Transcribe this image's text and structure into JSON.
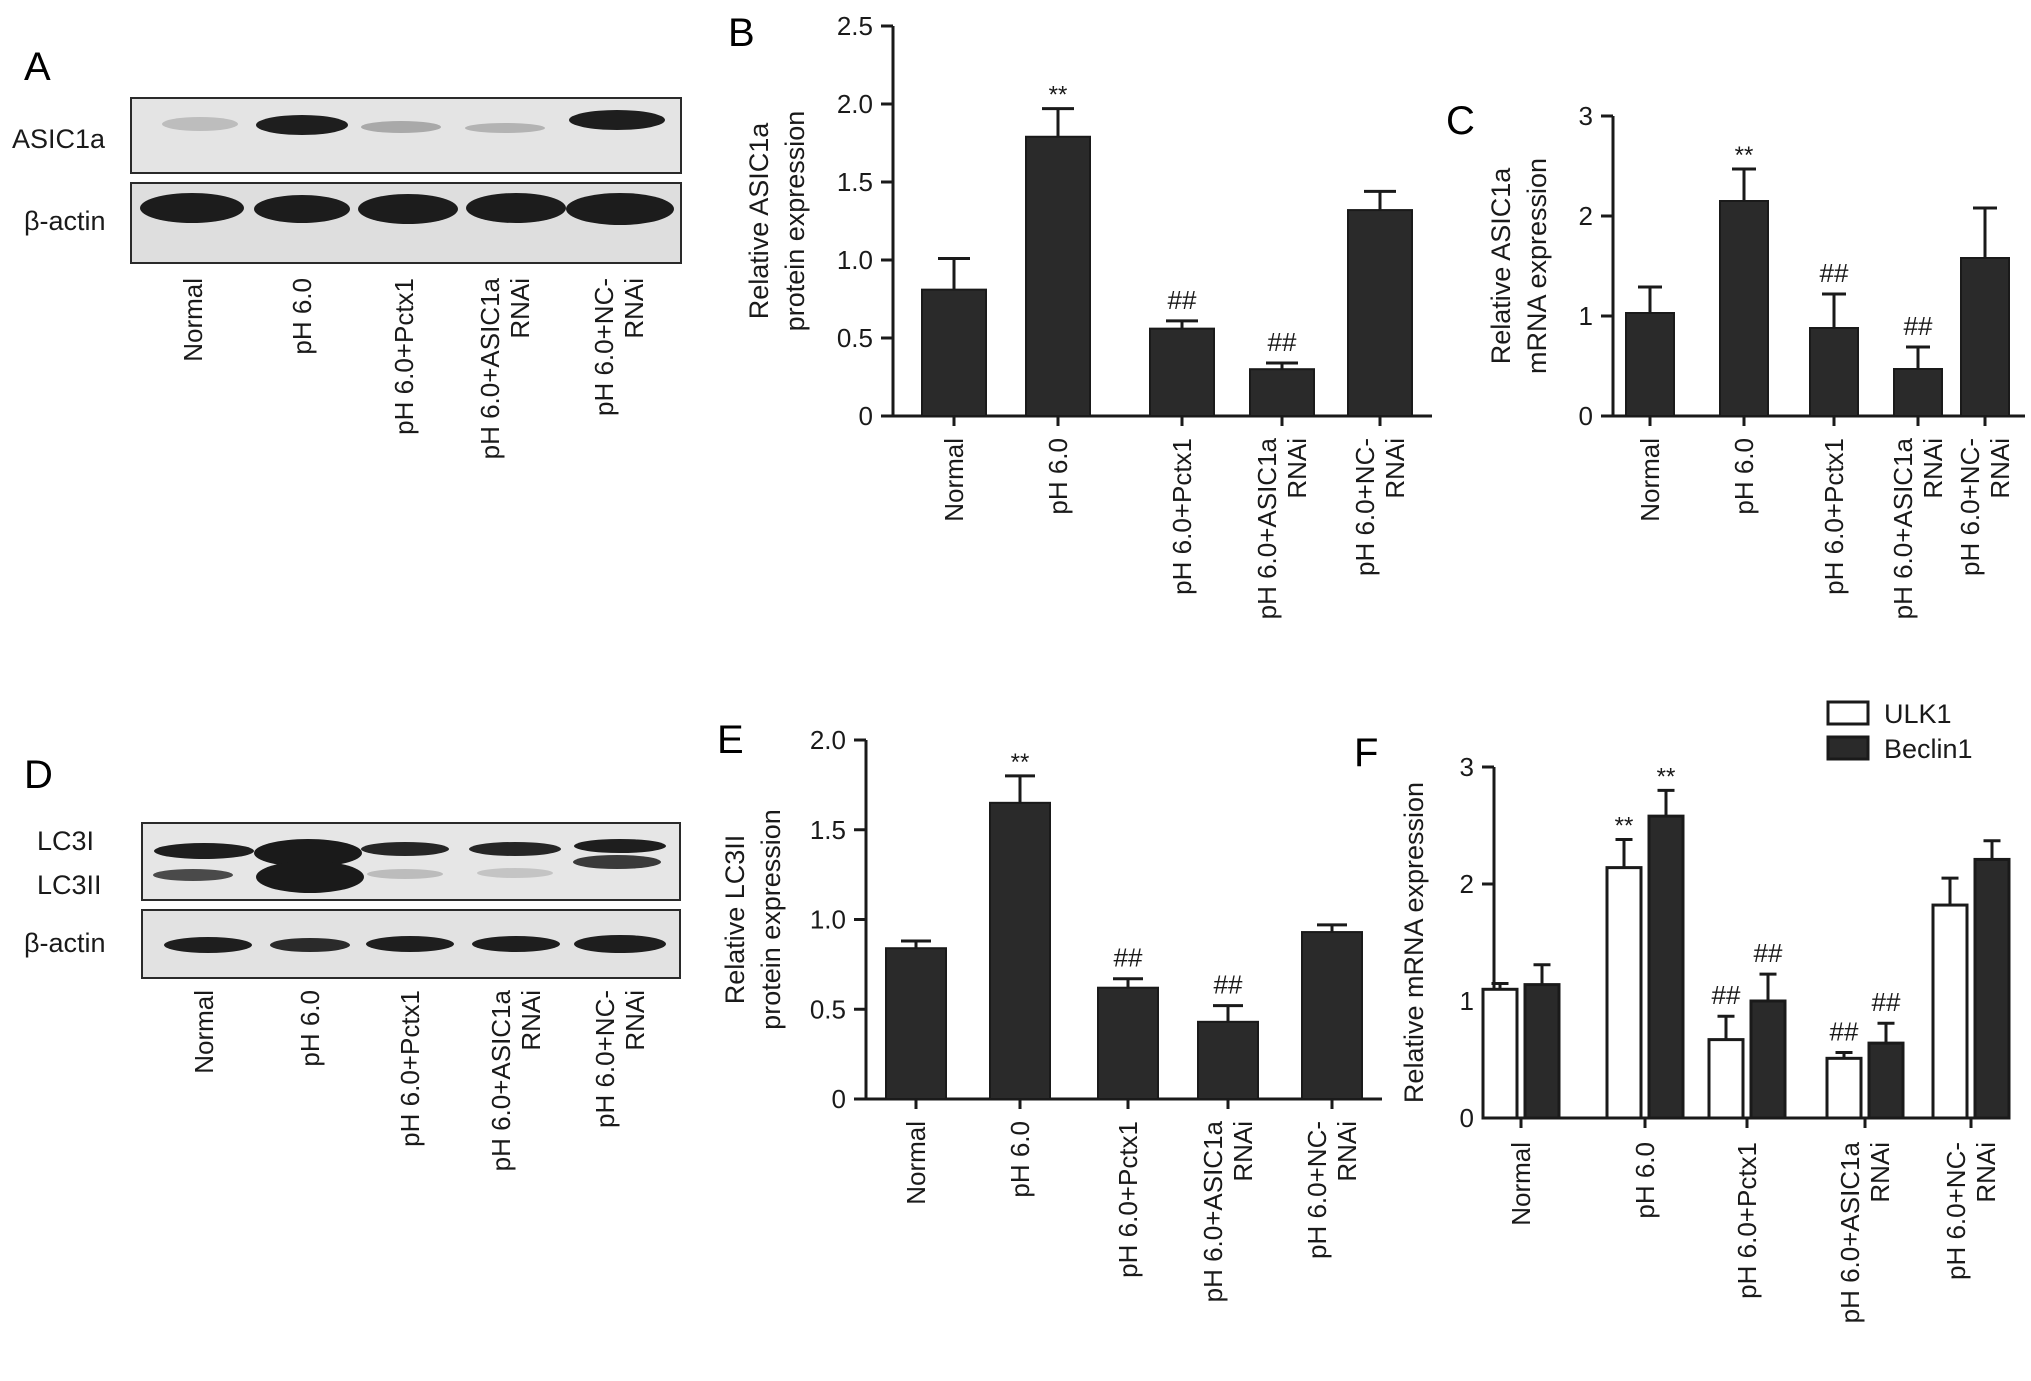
{
  "panels": {
    "A": "A",
    "B": "B",
    "C": "C",
    "D": "D",
    "E": "E",
    "F": "F"
  },
  "blots": [
    {
      "id": "A",
      "rows": [
        "ASIC1a",
        "β-actin"
      ],
      "lanes": [
        [
          "Normal"
        ],
        [
          "pH 6.0"
        ],
        [
          "pH 6.0+Pctx1"
        ],
        [
          "pH 6.0+ASIC1a",
          "RNAi"
        ],
        [
          "pH 6.0+NC-",
          "RNAi"
        ]
      ]
    },
    {
      "id": "D",
      "rows": [
        "LC3I",
        "LC3II",
        "β-actin"
      ],
      "lanes": [
        [
          "Normal"
        ],
        [
          "pH 6.0"
        ],
        [
          "pH 6.0+Pctx1"
        ],
        [
          "pH 6.0+ASIC1a",
          "RNAi"
        ],
        [
          "pH 6.0+NC-",
          "RNAi"
        ]
      ]
    }
  ],
  "chart_data": [
    {
      "id": "B",
      "type": "bar",
      "categories": [
        [
          "Normal"
        ],
        [
          "pH 6.0"
        ],
        [
          "pH 6.0+Pctx1"
        ],
        [
          "pH 6.0+ASIC1a",
          "RNAi"
        ],
        [
          "pH 6.0+NC-",
          "RNAi"
        ]
      ],
      "series": [
        {
          "values": [
            0.81,
            1.79,
            0.56,
            0.3,
            1.32
          ],
          "errors": [
            0.2,
            0.18,
            0.05,
            0.04,
            0.12
          ],
          "color": "#2a2a2a"
        }
      ],
      "annotations": [
        "",
        "**",
        "##",
        "##",
        ""
      ],
      "ylabel": [
        "Relative ASIC1a",
        "protein expression"
      ],
      "ylim": [
        0,
        2.5
      ],
      "yticks": [
        "0",
        "0.5",
        "1.0",
        "1.5",
        "2.0",
        "2.5"
      ],
      "ytick_values": [
        0,
        0.5,
        1.0,
        1.5,
        2.0,
        2.5
      ],
      "grid": false
    },
    {
      "id": "C",
      "type": "bar",
      "categories": [
        [
          "Normal"
        ],
        [
          "pH 6.0"
        ],
        [
          "pH 6.0+Pctx1"
        ],
        [
          "pH 6.0+ASIC1a",
          "RNAi"
        ],
        [
          "pH 6.0+NC-",
          "RNAi"
        ]
      ],
      "series": [
        {
          "values": [
            1.03,
            2.15,
            0.88,
            0.47,
            1.58
          ],
          "errors": [
            0.26,
            0.32,
            0.34,
            0.22,
            0.5
          ],
          "color": "#2a2a2a"
        }
      ],
      "annotations": [
        "",
        "**",
        "##",
        "##",
        ""
      ],
      "ylabel": [
        "Relative ASIC1a",
        "mRNA expression"
      ],
      "ylim": [
        0,
        3
      ],
      "yticks": [
        "0",
        "1",
        "2",
        "3"
      ],
      "ytick_values": [
        0,
        1,
        2,
        3
      ],
      "grid": false
    },
    {
      "id": "E",
      "type": "bar",
      "categories": [
        [
          "Normal"
        ],
        [
          "pH 6.0"
        ],
        [
          "pH 6.0+Pctx1"
        ],
        [
          "pH 6.0+ASIC1a",
          "RNAi"
        ],
        [
          "pH 6.0+NC-",
          "RNAi"
        ]
      ],
      "series": [
        {
          "values": [
            0.84,
            1.65,
            0.62,
            0.43,
            0.93
          ],
          "errors": [
            0.04,
            0.15,
            0.05,
            0.09,
            0.04
          ],
          "color": "#2a2a2a"
        }
      ],
      "annotations": [
        "",
        "**",
        "##",
        "##",
        ""
      ],
      "ylabel": [
        "Relative LC3II",
        "protein expression"
      ],
      "ylim": [
        0,
        2.0
      ],
      "yticks": [
        "0",
        "0.5",
        "1.0",
        "1.5",
        "2.0"
      ],
      "ytick_values": [
        0,
        0.5,
        1.0,
        1.5,
        2.0
      ],
      "grid": false
    },
    {
      "id": "F",
      "type": "bar",
      "categories": [
        [
          "Normal"
        ],
        [
          "pH 6.0"
        ],
        [
          "pH 6.0+Pctx1"
        ],
        [
          "pH 6.0+ASIC1a",
          "RNAi"
        ],
        [
          "pH 6.0+NC-",
          "RNAi"
        ]
      ],
      "series": [
        {
          "name": "ULK1",
          "values": [
            1.1,
            2.14,
            0.67,
            0.51,
            1.82
          ],
          "errors": [
            0.05,
            0.24,
            0.2,
            0.05,
            0.23
          ],
          "annotations": [
            "",
            "**",
            "##",
            "##",
            ""
          ],
          "color": "#ffffff"
        },
        {
          "name": "Beclin1",
          "values": [
            1.14,
            2.58,
            1.0,
            0.64,
            2.21
          ],
          "errors": [
            0.17,
            0.22,
            0.23,
            0.17,
            0.16
          ],
          "annotations": [
            "",
            "**",
            "##",
            "##",
            ""
          ],
          "color": "#2a2a2a"
        }
      ],
      "ylabel": [
        "Relative mRNA expression"
      ],
      "ylim": [
        0,
        3
      ],
      "yticks": [
        "0",
        "1",
        "2",
        "3"
      ],
      "ytick_values": [
        0,
        1,
        2,
        3
      ],
      "legend": "top-right",
      "grid": false
    }
  ]
}
